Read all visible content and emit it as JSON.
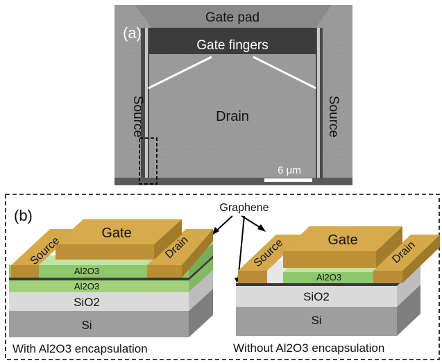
{
  "panel_a": {
    "label": "(a)",
    "gate_pad": "Gate pad",
    "gate_fingers": "Gate fingers",
    "source_left": "Source",
    "source_right": "Source",
    "drain": "Drain",
    "scale_bar": "6 μm"
  },
  "panel_b": {
    "label": "(b)",
    "graphene": "Graphene",
    "left": {
      "source": "Source",
      "gate": "Gate",
      "drain": "Drain",
      "al2o3_top": "Al2O3",
      "al2o3_bottom": "Al2O3",
      "sio2": "SiO2",
      "si": "Si",
      "caption": "With Al2O3 encapsulation"
    },
    "right": {
      "source": "Source",
      "gate": "Gate",
      "drain": "Drain",
      "al2o3": "Al2O3",
      "sio2": "SiO2",
      "si": "Si",
      "caption": "Without Al2O3 encapsulation"
    }
  },
  "colors": {
    "metal": "#c8a040",
    "al2o3": "#8fc86a",
    "sio2": "#d6d6d6",
    "si": "#9e9e9e",
    "graphene": "#3a3a3a",
    "sem_gate_pad": "#8c8c8c",
    "sem_dark": "#3a3a3a"
  }
}
